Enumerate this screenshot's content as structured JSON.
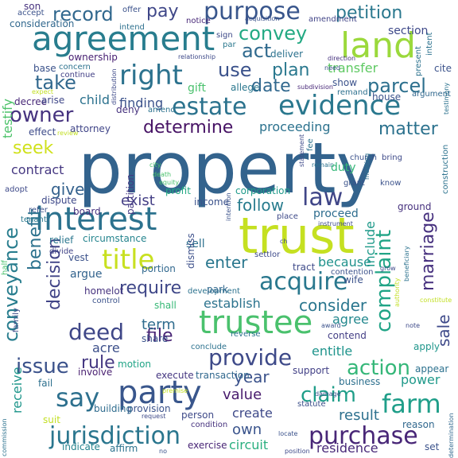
{
  "words": [
    {
      "text": "property",
      "color": "#33638d"
    },
    {
      "text": "trust",
      "color": "#c5e021"
    },
    {
      "text": "land",
      "color": "#9bd93c"
    },
    {
      "text": "agreement",
      "color": "#287d8e"
    },
    {
      "text": "interest",
      "color": "#2c728e"
    },
    {
      "text": "party",
      "color": "#39568c"
    },
    {
      "text": "trustee",
      "color": "#4ac16d"
    },
    {
      "text": "title",
      "color": "#c8e020"
    },
    {
      "text": "right",
      "color": "#2c728e"
    },
    {
      "text": "evidence",
      "color": "#2a788e"
    },
    {
      "text": "estate",
      "color": "#2c738e"
    },
    {
      "text": "purpose",
      "color": "#39568c"
    },
    {
      "text": "jurisdiction",
      "color": "#2a768e"
    },
    {
      "text": "purchase",
      "color": "#482677"
    },
    {
      "text": "acquire",
      "color": "#2a788e"
    },
    {
      "text": "say",
      "color": "#2d708e"
    },
    {
      "text": "farm",
      "color": "#1f9e89"
    },
    {
      "text": "provide",
      "color": "#3e4a89"
    },
    {
      "text": "conveyance",
      "color": "#287d8e"
    },
    {
      "text": "issue",
      "color": "#3b528b"
    },
    {
      "text": "deed",
      "color": "#3f4788"
    },
    {
      "text": "claim",
      "color": "#1f9e89"
    },
    {
      "text": "action",
      "color": "#35b779"
    },
    {
      "text": "complaint",
      "color": "#20a486"
    },
    {
      "text": "law",
      "color": "#404688"
    },
    {
      "text": "determine",
      "color": "#471365"
    },
    {
      "text": "owner",
      "color": "#46337f"
    },
    {
      "text": "take",
      "color": "#31688e"
    },
    {
      "text": "parcel",
      "color": "#2d708e"
    },
    {
      "text": "record",
      "color": "#31688e"
    },
    {
      "text": "petition",
      "color": "#2a788e"
    },
    {
      "text": "convey",
      "color": "#23a983"
    },
    {
      "text": "use",
      "color": "#3b528b"
    },
    {
      "text": "act",
      "color": "#306a8e"
    },
    {
      "text": "plan",
      "color": "#2a788e"
    },
    {
      "text": "date",
      "color": "#31688e"
    },
    {
      "text": "matter",
      "color": "#2c728e"
    },
    {
      "text": "seek",
      "color": "#d0e11c"
    },
    {
      "text": "pay",
      "color": "#3f4788"
    },
    {
      "text": "marriage",
      "color": "#46307e"
    },
    {
      "text": "benefit",
      "color": "#2c728e"
    },
    {
      "text": "decision",
      "color": "#414487"
    },
    {
      "text": "require",
      "color": "#3f4788"
    },
    {
      "text": "enter",
      "color": "#2a778e"
    },
    {
      "text": "consider",
      "color": "#2a768e"
    },
    {
      "text": "follow",
      "color": "#287c8e"
    },
    {
      "text": "exist",
      "color": "#433e85"
    },
    {
      "text": "give",
      "color": "#34618d"
    },
    {
      "text": "sale",
      "color": "#3e4989"
    },
    {
      "text": "year",
      "color": "#3b528b"
    },
    {
      "text": "file",
      "color": "#482475"
    },
    {
      "text": "rule",
      "color": "#453882"
    },
    {
      "text": "value",
      "color": "#481b6d"
    },
    {
      "text": "result",
      "color": "#2d708e"
    },
    {
      "text": "own",
      "color": "#3a548c"
    },
    {
      "text": "power",
      "color": "#1f998a"
    },
    {
      "text": "term",
      "color": "#2f6c8e"
    },
    {
      "text": "establish",
      "color": "#2c738e"
    },
    {
      "text": "include",
      "color": "#1f9a8a"
    },
    {
      "text": "proceeding",
      "color": "#2c728e"
    },
    {
      "text": "contract",
      "color": "#453781"
    },
    {
      "text": "testify",
      "color": "#4ec36b"
    },
    {
      "text": "receive",
      "color": "#1f968b"
    },
    {
      "text": "circuit",
      "color": "#29af7f"
    },
    {
      "text": "residence",
      "color": "#482878"
    },
    {
      "text": "create",
      "color": "#3e4989"
    },
    {
      "text": "entitle",
      "color": "#1f948c"
    },
    {
      "text": "agree",
      "color": "#23888e"
    },
    {
      "text": "because",
      "color": "#20928c"
    },
    {
      "text": "transfer",
      "color": "#5ec962"
    },
    {
      "text": "finding",
      "color": "#3b528b"
    },
    {
      "text": "child",
      "color": "#2c728e"
    },
    {
      "text": "acre",
      "color": "#3c4f8a"
    },
    {
      "text": "section",
      "color": "#3e4989"
    },
    {
      "text": "sell",
      "color": "#2d718e"
    },
    {
      "text": "proceed",
      "color": "#2e6d8e"
    },
    {
      "text": "ownership",
      "color": "#482173"
    },
    {
      "text": "consideration",
      "color": "#31688e"
    },
    {
      "text": "attorney",
      "color": "#404588"
    },
    {
      "text": "effect",
      "color": "#3e4c8a"
    },
    {
      "text": "circumstance",
      "color": "#25848e"
    },
    {
      "text": "relief",
      "color": "#2a768e"
    },
    {
      "text": "house",
      "color": "#3b528b"
    },
    {
      "text": "allege",
      "color": "#2a778e"
    },
    {
      "text": "gift",
      "color": "#4ac16d"
    },
    {
      "text": "deny",
      "color": "#46327e"
    },
    {
      "text": "deliver",
      "color": "#2c728e"
    },
    {
      "text": "corporation",
      "color": "#1f9a8a"
    },
    {
      "text": "income",
      "color": "#3b528b"
    },
    {
      "text": "partition",
      "color": "#443983"
    },
    {
      "text": "profit",
      "color": "#23a983"
    },
    {
      "text": "tract",
      "color": "#3e4a89"
    },
    {
      "text": "contend",
      "color": "#433e85"
    },
    {
      "text": "wife",
      "color": "#3b528b"
    },
    {
      "text": "argue",
      "color": "#33638d"
    },
    {
      "text": "portion",
      "color": "#31688e"
    },
    {
      "text": "dismiss",
      "color": "#3c4f8a"
    },
    {
      "text": "home",
      "color": "#46327e"
    },
    {
      "text": "lot",
      "color": "#453882"
    },
    {
      "text": "involve",
      "color": "#481f70"
    },
    {
      "text": "share",
      "color": "#3b528b"
    },
    {
      "text": "motion",
      "color": "#20a486"
    },
    {
      "text": "execute",
      "color": "#453781"
    },
    {
      "text": "transaction",
      "color": "#31688e"
    },
    {
      "text": "support",
      "color": "#424086"
    },
    {
      "text": "business",
      "color": "#2d708e"
    },
    {
      "text": "apply",
      "color": "#1f968b"
    },
    {
      "text": "appear",
      "color": "#2c718e"
    },
    {
      "text": "provision",
      "color": "#3b528b"
    },
    {
      "text": "person",
      "color": "#3e4a89"
    },
    {
      "text": "building",
      "color": "#2f6c8e"
    },
    {
      "text": "condition",
      "color": "#46327e"
    },
    {
      "text": "exercise",
      "color": "#482576"
    },
    {
      "text": "indicate",
      "color": "#25838e"
    },
    {
      "text": "affirm",
      "color": "#2c738e"
    },
    {
      "text": "statute",
      "color": "#3c4f8a"
    },
    {
      "text": "reason",
      "color": "#31688e"
    },
    {
      "text": "development",
      "color": "#2c728e"
    },
    {
      "text": "shall",
      "color": "#38b977"
    },
    {
      "text": "park",
      "color": "#31688e"
    },
    {
      "text": "control",
      "color": "#3b528b"
    },
    {
      "text": "fail",
      "color": "#2d708e"
    },
    {
      "text": "suit",
      "color": "#c2df23"
    },
    {
      "text": "vest",
      "color": "#3b528b"
    },
    {
      "text": "half",
      "color": "#4ac16d"
    },
    {
      "text": "family",
      "color": "#3e4a89"
    },
    {
      "text": "divide",
      "color": "#414487"
    },
    {
      "text": "dispute",
      "color": "#3e4989"
    },
    {
      "text": "board",
      "color": "#46317e"
    },
    {
      "text": "refer",
      "color": "#3b528b"
    },
    {
      "text": "tenant",
      "color": "#2a788e"
    },
    {
      "text": "adopt",
      "color": "#3e4a89"
    },
    {
      "text": "decree",
      "color": "#482878"
    },
    {
      "text": "arise",
      "color": "#3f4788"
    },
    {
      "text": "base",
      "color": "#3b528b"
    },
    {
      "text": "concern",
      "color": "#2c728e"
    },
    {
      "text": "continue",
      "color": "#424086"
    },
    {
      "text": "son",
      "color": "#46317e"
    },
    {
      "text": "accept",
      "color": "#3b528b"
    },
    {
      "text": "offer",
      "color": "#3b528b"
    },
    {
      "text": "intend",
      "color": "#2d708e"
    },
    {
      "text": "notice",
      "color": "#482878"
    },
    {
      "text": "sign",
      "color": "#3e4a89"
    },
    {
      "text": "par",
      "color": "#2a788e"
    },
    {
      "text": "relationship",
      "color": "#3e4a89"
    },
    {
      "text": "acquisition",
      "color": "#3b528b"
    },
    {
      "text": "amendment",
      "color": "#414487"
    },
    {
      "text": "intent",
      "color": "#2c728e"
    },
    {
      "text": "present",
      "color": "#2c728e"
    },
    {
      "text": "cite",
      "color": "#3b528b"
    },
    {
      "text": "direction",
      "color": "#46317e"
    },
    {
      "text": "need",
      "color": "#3b528b"
    },
    {
      "text": "argument",
      "color": "#31688e"
    },
    {
      "text": "testimony",
      "color": "#2c728e"
    },
    {
      "text": "show",
      "color": "#3b528b"
    },
    {
      "text": "remand",
      "color": "#2d708e"
    },
    {
      "text": "subdivision",
      "color": "#482878"
    },
    {
      "text": "expect",
      "color": "#c2df23"
    },
    {
      "text": "amend",
      "color": "#2c728e"
    },
    {
      "text": "distribution",
      "color": "#3e4a89"
    },
    {
      "text": "review",
      "color": "#c2df23"
    },
    {
      "text": "city",
      "color": "#4ac16d"
    },
    {
      "text": "death",
      "color": "#4ac16d"
    },
    {
      "text": "equity",
      "color": "#4ac16d"
    },
    {
      "text": "fee",
      "color": "#2c728e"
    },
    {
      "text": "statement",
      "color": "#3e4a89"
    },
    {
      "text": "remain",
      "color": "#2c728e"
    },
    {
      "text": "duty",
      "color": "#35b779"
    },
    {
      "text": "church",
      "color": "#3b528b"
    },
    {
      "text": "bring",
      "color": "#3e4a89"
    },
    {
      "text": "grant",
      "color": "#3b528b"
    },
    {
      "text": "know",
      "color": "#3b528b"
    },
    {
      "text": "construction",
      "color": "#2c728e"
    },
    {
      "text": "ground",
      "color": "#46317e"
    },
    {
      "text": "meeting",
      "color": "#2d708e"
    },
    {
      "text": "place",
      "color": "#3e4a89"
    },
    {
      "text": "instrument",
      "color": "#3e4a89"
    },
    {
      "text": "intention",
      "color": "#3b528b"
    },
    {
      "text": "contention",
      "color": "#3b528b"
    },
    {
      "text": "settlor",
      "color": "#3e4a89"
    },
    {
      "text": "beneficiary",
      "color": "#2c728e"
    },
    {
      "text": "authority",
      "color": "#c2df23"
    },
    {
      "text": "constitute",
      "color": "#c2df23"
    },
    {
      "text": "note",
      "color": "#3e4a89"
    },
    {
      "text": "award",
      "color": "#3b528b"
    },
    {
      "text": "conclude",
      "color": "#2c728e"
    },
    {
      "text": "premise",
      "color": "#c2df23"
    },
    {
      "text": "damage",
      "color": "#3b528b"
    },
    {
      "text": "reverse",
      "color": "#2c728e"
    },
    {
      "text": "request",
      "color": "#3e4a89"
    },
    {
      "text": "locate",
      "color": "#3b528b"
    },
    {
      "text": "position",
      "color": "#3e4a89"
    },
    {
      "text": "set",
      "color": "#3b528b"
    },
    {
      "text": "commission",
      "color": "#2c728e"
    },
    {
      "text": "determination",
      "color": "#31688e"
    },
    {
      "text": "no",
      "color": "#3b528b"
    },
    {
      "text": "ch",
      "color": "#3e4a89"
    },
    {
      "text": "grow",
      "color": "#3e4a89"
    }
  ]
}
